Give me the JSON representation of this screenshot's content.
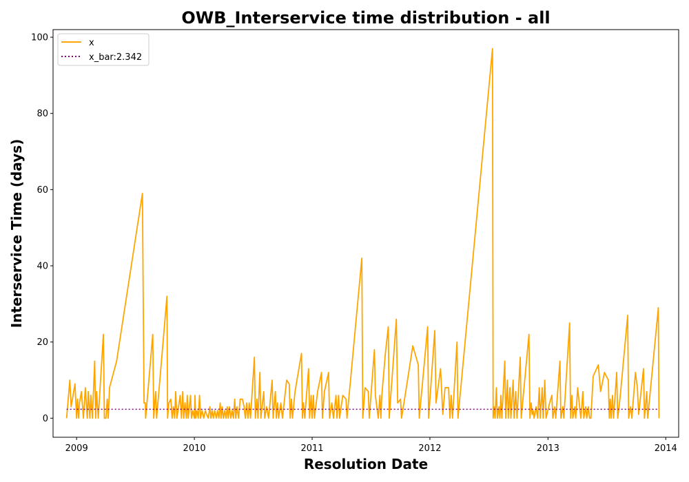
{
  "chart_data": {
    "type": "line",
    "title": "OWB_Interservice time distribution - all",
    "xlabel": "Resolution Date",
    "ylabel": "Interservice Time (days)",
    "xlim": [
      "2008-10-20",
      "2014-02-10"
    ],
    "ylim": [
      -5,
      102
    ],
    "x_ticks": [
      "2009",
      "2010",
      "2011",
      "2012",
      "2013",
      "2014"
    ],
    "y_ticks": [
      0,
      20,
      40,
      60,
      80,
      100
    ],
    "grid": false,
    "legend": "top-left",
    "colors": {
      "x": "#ffa500",
      "x_bar": "#800080"
    },
    "series": [
      {
        "name": "x",
        "style": "solid",
        "points": [
          [
            "2008-12-01",
            0
          ],
          [
            "2008-12-11",
            10
          ],
          [
            "2008-12-15",
            3
          ],
          [
            "2008-12-27",
            9
          ],
          [
            "2009-01-01",
            0
          ],
          [
            "2009-01-04",
            5
          ],
          [
            "2009-01-07",
            0
          ],
          [
            "2009-01-10",
            4
          ],
          [
            "2009-01-16",
            7
          ],
          [
            "2009-01-22",
            0
          ],
          [
            "2009-01-28",
            8
          ],
          [
            "2009-02-03",
            0
          ],
          [
            "2009-02-06",
            7
          ],
          [
            "2009-02-11",
            0
          ],
          [
            "2009-02-14",
            6
          ],
          [
            "2009-02-19",
            0
          ],
          [
            "2009-02-26",
            15
          ],
          [
            "2009-03-01",
            0
          ],
          [
            "2009-03-04",
            7
          ],
          [
            "2009-03-09",
            0
          ],
          [
            "2009-03-25",
            22
          ],
          [
            "2009-03-28",
            0
          ],
          [
            "2009-04-02",
            0
          ],
          [
            "2009-04-06",
            5
          ],
          [
            "2009-04-09",
            0
          ],
          [
            "2009-04-13",
            8
          ],
          [
            "2009-05-05",
            15
          ],
          [
            "2009-07-24",
            59
          ],
          [
            "2009-07-29",
            4
          ],
          [
            "2009-08-02",
            4
          ],
          [
            "2009-08-03",
            0
          ],
          [
            "2009-08-25",
            22
          ],
          [
            "2009-08-28",
            0
          ],
          [
            "2009-09-03",
            7
          ],
          [
            "2009-09-06",
            0
          ],
          [
            "2009-10-08",
            32
          ],
          [
            "2009-10-10",
            0
          ],
          [
            "2009-10-14",
            4
          ],
          [
            "2009-10-20",
            5
          ],
          [
            "2009-10-24",
            0
          ],
          [
            "2009-10-28",
            3
          ],
          [
            "2009-11-01",
            0
          ],
          [
            "2009-11-04",
            7
          ],
          [
            "2009-11-08",
            0
          ],
          [
            "2009-11-13",
            3
          ],
          [
            "2009-11-18",
            6
          ],
          [
            "2009-11-22",
            0
          ],
          [
            "2009-11-26",
            7
          ],
          [
            "2009-11-29",
            0
          ],
          [
            "2009-12-03",
            4
          ],
          [
            "2009-12-07",
            0
          ],
          [
            "2009-12-10",
            6
          ],
          [
            "2009-12-13",
            0
          ],
          [
            "2009-12-20",
            6
          ],
          [
            "2009-12-23",
            0
          ],
          [
            "2009-12-27",
            2
          ],
          [
            "2010-01-01",
            0
          ],
          [
            "2010-01-03",
            6
          ],
          [
            "2010-01-05",
            0
          ],
          [
            "2010-01-09",
            2
          ],
          [
            "2010-01-13",
            0
          ],
          [
            "2010-01-17",
            6
          ],
          [
            "2010-01-20",
            0
          ],
          [
            "2010-01-25",
            2
          ],
          [
            "2010-01-30",
            0
          ],
          [
            "2010-02-04",
            2
          ],
          [
            "2010-02-08",
            1
          ],
          [
            "2010-02-13",
            0
          ],
          [
            "2010-02-18",
            3
          ],
          [
            "2010-02-21",
            0
          ],
          [
            "2010-02-25",
            2
          ],
          [
            "2010-03-01",
            0
          ],
          [
            "2010-03-05",
            2
          ],
          [
            "2010-03-10",
            0
          ],
          [
            "2010-03-14",
            2
          ],
          [
            "2010-03-18",
            0
          ],
          [
            "2010-03-22",
            4
          ],
          [
            "2010-03-25",
            0
          ],
          [
            "2010-03-28",
            3
          ],
          [
            "2010-04-01",
            0
          ],
          [
            "2010-04-05",
            2
          ],
          [
            "2010-04-09",
            0
          ],
          [
            "2010-04-13",
            3
          ],
          [
            "2010-04-16",
            0
          ],
          [
            "2010-04-20",
            3
          ],
          [
            "2010-04-24",
            0
          ],
          [
            "2010-04-28",
            2
          ],
          [
            "2010-05-02",
            0
          ],
          [
            "2010-05-06",
            5
          ],
          [
            "2010-05-09",
            0
          ],
          [
            "2010-05-13",
            3
          ],
          [
            "2010-05-18",
            0
          ],
          [
            "2010-05-23",
            5
          ],
          [
            "2010-05-30",
            5
          ],
          [
            "2010-06-04",
            3
          ],
          [
            "2010-06-08",
            0
          ],
          [
            "2010-06-12",
            4
          ],
          [
            "2010-06-16",
            0
          ],
          [
            "2010-06-20",
            4
          ],
          [
            "2010-06-24",
            0
          ],
          [
            "2010-07-06",
            16
          ],
          [
            "2010-07-09",
            0
          ],
          [
            "2010-07-14",
            5
          ],
          [
            "2010-07-17",
            0
          ],
          [
            "2010-07-23",
            12
          ],
          [
            "2010-07-26",
            0
          ],
          [
            "2010-08-04",
            7
          ],
          [
            "2010-08-07",
            0
          ],
          [
            "2010-08-13",
            3
          ],
          [
            "2010-08-19",
            0
          ],
          [
            "2010-08-30",
            10
          ],
          [
            "2010-09-02",
            0
          ],
          [
            "2010-09-09",
            7
          ],
          [
            "2010-09-12",
            0
          ],
          [
            "2010-09-16",
            4
          ],
          [
            "2010-09-19",
            0
          ],
          [
            "2010-09-26",
            4
          ],
          [
            "2010-10-01",
            0
          ],
          [
            "2010-10-14",
            10
          ],
          [
            "2010-10-22",
            9
          ],
          [
            "2010-10-25",
            0
          ],
          [
            "2010-10-29",
            5
          ],
          [
            "2010-11-01",
            0
          ],
          [
            "2010-11-09",
            7
          ],
          [
            "2010-11-29",
            17
          ],
          [
            "2010-12-02",
            0
          ],
          [
            "2010-12-05",
            4
          ],
          [
            "2010-12-09",
            0
          ],
          [
            "2010-12-21",
            13
          ],
          [
            "2010-12-24",
            0
          ],
          [
            "2010-12-29",
            6
          ],
          [
            "2011-01-01",
            0
          ],
          [
            "2011-01-05",
            6
          ],
          [
            "2011-01-08",
            0
          ],
          [
            "2011-01-18",
            7
          ],
          [
            "2011-01-30",
            12
          ],
          [
            "2011-02-02",
            0
          ],
          [
            "2011-02-08",
            7
          ],
          [
            "2011-02-21",
            12
          ],
          [
            "2011-02-24",
            0
          ],
          [
            "2011-03-03",
            4
          ],
          [
            "2011-03-08",
            0
          ],
          [
            "2011-03-16",
            6
          ],
          [
            "2011-03-19",
            0
          ],
          [
            "2011-03-24",
            6
          ],
          [
            "2011-03-27",
            0
          ],
          [
            "2011-04-06",
            6
          ],
          [
            "2011-04-16",
            5
          ],
          [
            "2011-04-19",
            0
          ],
          [
            "2011-06-04",
            42
          ],
          [
            "2011-06-07",
            0
          ],
          [
            "2011-06-14",
            8
          ],
          [
            "2011-06-24",
            7
          ],
          [
            "2011-06-27",
            0
          ],
          [
            "2011-07-13",
            18
          ],
          [
            "2011-07-16",
            6
          ],
          [
            "2011-07-25",
            0
          ],
          [
            "2011-07-30",
            6
          ],
          [
            "2011-08-02",
            0
          ],
          [
            "2011-08-05",
            6
          ],
          [
            "2011-08-16",
            17
          ],
          [
            "2011-08-25",
            24
          ],
          [
            "2011-08-28",
            0
          ],
          [
            "2011-09-01",
            5
          ],
          [
            "2011-09-19",
            26
          ],
          [
            "2011-09-23",
            4
          ],
          [
            "2011-10-02",
            5
          ],
          [
            "2011-10-05",
            0
          ],
          [
            "2011-10-20",
            8
          ],
          [
            "2011-11-09",
            19
          ],
          [
            "2011-11-26",
            14
          ],
          [
            "2011-11-29",
            0
          ],
          [
            "2011-12-25",
            24
          ],
          [
            "2011-12-28",
            0
          ],
          [
            "2012-01-16",
            23
          ],
          [
            "2012-01-20",
            4
          ],
          [
            "2012-02-03",
            13
          ],
          [
            "2012-02-10",
            1
          ],
          [
            "2012-02-17",
            8
          ],
          [
            "2012-02-28",
            8
          ],
          [
            "2012-03-03",
            0
          ],
          [
            "2012-03-07",
            6
          ],
          [
            "2012-03-11",
            0
          ],
          [
            "2012-03-25",
            20
          ],
          [
            "2012-03-28",
            0
          ],
          [
            "2012-07-13",
            97
          ],
          [
            "2012-07-15",
            0
          ],
          [
            "2012-07-18",
            3
          ],
          [
            "2012-07-21",
            0
          ],
          [
            "2012-07-25",
            8
          ],
          [
            "2012-07-28",
            0
          ],
          [
            "2012-08-02",
            3
          ],
          [
            "2012-08-05",
            0
          ],
          [
            "2012-08-08",
            6
          ],
          [
            "2012-08-11",
            0
          ],
          [
            "2012-08-20",
            15
          ],
          [
            "2012-08-23",
            0
          ],
          [
            "2012-08-28",
            10
          ],
          [
            "2012-08-31",
            0
          ],
          [
            "2012-09-05",
            8
          ],
          [
            "2012-09-08",
            0
          ],
          [
            "2012-09-15",
            10
          ],
          [
            "2012-09-18",
            0
          ],
          [
            "2012-09-23",
            7
          ],
          [
            "2012-09-27",
            0
          ],
          [
            "2012-10-07",
            16
          ],
          [
            "2012-10-10",
            0
          ],
          [
            "2012-11-03",
            22
          ],
          [
            "2012-11-06",
            0
          ],
          [
            "2012-11-10",
            4
          ],
          [
            "2012-11-13",
            1
          ],
          [
            "2012-11-16",
            2
          ],
          [
            "2012-11-19",
            0
          ],
          [
            "2012-11-25",
            3
          ],
          [
            "2012-11-30",
            0
          ],
          [
            "2012-12-05",
            8
          ],
          [
            "2012-12-08",
            0
          ],
          [
            "2012-12-14",
            8
          ],
          [
            "2012-12-17",
            0
          ],
          [
            "2012-12-22",
            10
          ],
          [
            "2012-12-26",
            0
          ],
          [
            "2013-01-06",
            4
          ],
          [
            "2013-01-13",
            6
          ],
          [
            "2013-01-16",
            0
          ],
          [
            "2013-01-22",
            3
          ],
          [
            "2013-01-25",
            0
          ],
          [
            "2013-02-07",
            15
          ],
          [
            "2013-02-10",
            0
          ],
          [
            "2013-02-16",
            3
          ],
          [
            "2013-02-19",
            0
          ],
          [
            "2013-03-09",
            25
          ],
          [
            "2013-03-12",
            0
          ],
          [
            "2013-03-16",
            6
          ],
          [
            "2013-03-19",
            0
          ],
          [
            "2013-03-25",
            3
          ],
          [
            "2013-03-28",
            0
          ],
          [
            "2013-04-03",
            8
          ],
          [
            "2013-04-10",
            2
          ],
          [
            "2013-04-13",
            0
          ],
          [
            "2013-04-19",
            7
          ],
          [
            "2013-04-22",
            0
          ],
          [
            "2013-04-28",
            3
          ],
          [
            "2013-05-01",
            0
          ],
          [
            "2013-05-06",
            3
          ],
          [
            "2013-05-10",
            0
          ],
          [
            "2013-05-14",
            0
          ],
          [
            "2013-05-21",
            11
          ],
          [
            "2013-06-06",
            14
          ],
          [
            "2013-06-13",
            7
          ],
          [
            "2013-06-25",
            12
          ],
          [
            "2013-07-07",
            10
          ],
          [
            "2013-07-10",
            0
          ],
          [
            "2013-07-13",
            5
          ],
          [
            "2013-07-16",
            0
          ],
          [
            "2013-07-20",
            6
          ],
          [
            "2013-07-23",
            0
          ],
          [
            "2013-08-02",
            12
          ],
          [
            "2013-08-05",
            0
          ],
          [
            "2013-08-12",
            5
          ],
          [
            "2013-09-05",
            27
          ],
          [
            "2013-09-08",
            0
          ],
          [
            "2013-09-14",
            3
          ],
          [
            "2013-09-18",
            0
          ],
          [
            "2013-09-29",
            12
          ],
          [
            "2013-10-05",
            8
          ],
          [
            "2013-10-09",
            1
          ],
          [
            "2013-10-24",
            13
          ],
          [
            "2013-10-27",
            0
          ],
          [
            "2013-11-03",
            7
          ],
          [
            "2013-11-06",
            0
          ],
          [
            "2013-12-09",
            29
          ],
          [
            "2013-12-11",
            0
          ]
        ]
      },
      {
        "name": "x_bar:2.342",
        "style": "dotted",
        "points": [
          [
            "2008-12-01",
            2.342
          ],
          [
            "2013-12-11",
            2.342
          ]
        ]
      }
    ]
  }
}
